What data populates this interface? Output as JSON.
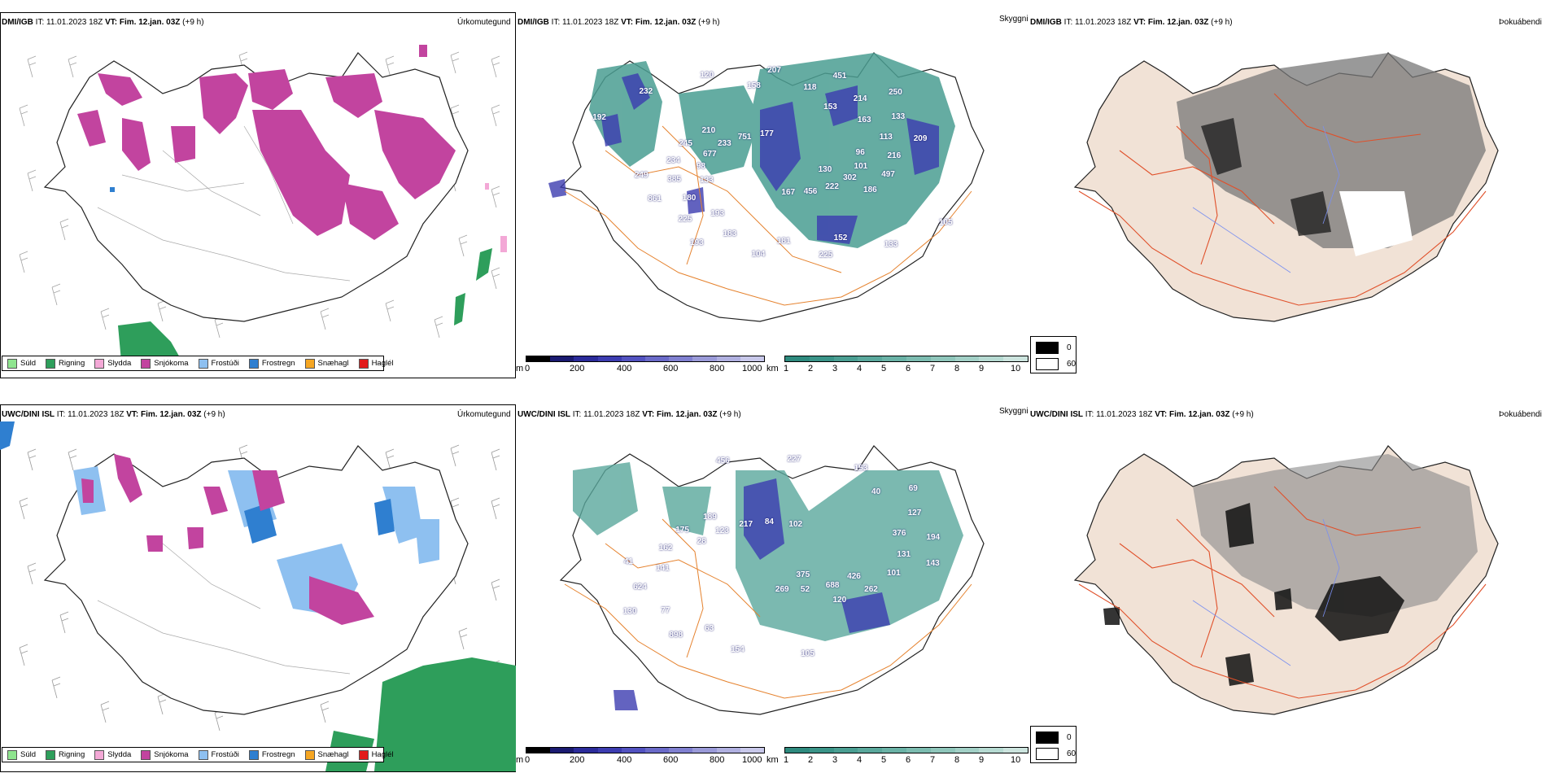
{
  "panels": [
    {
      "model": "DMI/IGB",
      "it_label": "IT:",
      "it": "11.01.2023 18Z",
      "vt_label": "VT:",
      "vt": "Fim. 12.jan. 03Z",
      "offset": "(+9 h)",
      "type": "Úrkomutegund"
    },
    {
      "model": "DMI/IGB",
      "it_label": "IT:",
      "it": "11.01.2023 18Z",
      "vt_label": "VT:",
      "vt": "Fim. 12.jan. 03Z",
      "offset": "(+9 h)",
      "type": "Skyggni"
    },
    {
      "model": "DMI/IGB",
      "it_label": "IT:",
      "it": "11.01.2023 18Z",
      "vt_label": "VT:",
      "vt": "Fim. 12.jan. 03Z",
      "offset": "(+9 h)",
      "type": "Þokuábendi"
    },
    {
      "model": "UWC/DINI ISL",
      "it_label": "IT:",
      "it": "11.01.2023 18Z",
      "vt_label": "VT:",
      "vt": "Fim. 12.jan. 03Z",
      "offset": "(+9 h)",
      "type": "Úrkomutegund"
    },
    {
      "model": "UWC/DINI ISL",
      "it_label": "IT:",
      "it": "11.01.2023 18Z",
      "vt_label": "VT:",
      "vt": "Fim. 12.jan. 03Z",
      "offset": "(+9 h)",
      "type": "Skyggni"
    },
    {
      "model": "UWC/DINI ISL",
      "it_label": "IT:",
      "it": "11.01.2023 18Z",
      "vt_label": "VT:",
      "vt": "Fim. 12.jan. 03Z",
      "offset": "(+9 h)",
      "type": "Þokuábendi"
    }
  ],
  "precip_legend": [
    {
      "label": "Súld",
      "color": "#8fe58f"
    },
    {
      "label": "Rigning",
      "color": "#2e9e5b"
    },
    {
      "label": "Slydda",
      "color": "#f3a8d6"
    },
    {
      "label": "Snjókoma",
      "color": "#c2449f"
    },
    {
      "label": "Frostúði",
      "color": "#8ec0f0"
    },
    {
      "label": "Frostregn",
      "color": "#2f7fd0"
    },
    {
      "label": "Snæhagl",
      "color": "#f5a623"
    },
    {
      "label": "Haglél",
      "color": "#e21b1b"
    }
  ],
  "ceiling_bar": {
    "unit": "m",
    "ticks": [
      "0",
      "200",
      "400",
      "600",
      "800",
      "1000"
    ],
    "colors": [
      "#000000",
      "#1a1a70",
      "#2b2b9a",
      "#3c3cb0",
      "#5252c0",
      "#6a6ac8",
      "#8080d0",
      "#9a9ad8",
      "#b0b0e0",
      "#c8c8ea"
    ]
  },
  "visibility_bar": {
    "unit": "km",
    "ticks": [
      "1",
      "2",
      "3",
      "4",
      "5",
      "6",
      "7",
      "8",
      "9",
      "10"
    ],
    "colors": [
      "#2e8a7e",
      "#3a9488",
      "#4a9e92",
      "#5aa89c",
      "#6ab2a6",
      "#7cbcb0",
      "#8fc6bb",
      "#a2d0c6",
      "#b6dad2",
      "#cce4de"
    ]
  },
  "fog_key": {
    "top": "0",
    "bottom": "60"
  },
  "ceiling_labels_top": [
    "130",
    "133",
    "153",
    "152",
    "192",
    "96",
    "193",
    "158",
    "105",
    "98",
    "163",
    "181",
    "232",
    "101",
    "180",
    "118",
    "133",
    "677",
    "113",
    "183",
    "120",
    "302",
    "385",
    "214",
    "225",
    "233",
    "216",
    "225",
    "207",
    "222",
    "234",
    "133",
    "104",
    "751",
    "497",
    "861",
    "451",
    "456",
    "245",
    "209",
    "193",
    "177",
    "186",
    "249",
    "250",
    "167",
    "210"
  ],
  "ceiling_labels_bottom": [
    "375",
    "28",
    "376",
    "63",
    "456",
    "426",
    "141",
    "40",
    "105",
    "123",
    "131",
    "77",
    "227",
    "688",
    "162",
    "127",
    "154",
    "217",
    "101",
    "624",
    "153",
    "52",
    "175",
    "194",
    "898",
    "84",
    "262",
    "41",
    "69",
    "269",
    "189",
    "143",
    "130",
    "102",
    "120"
  ]
}
